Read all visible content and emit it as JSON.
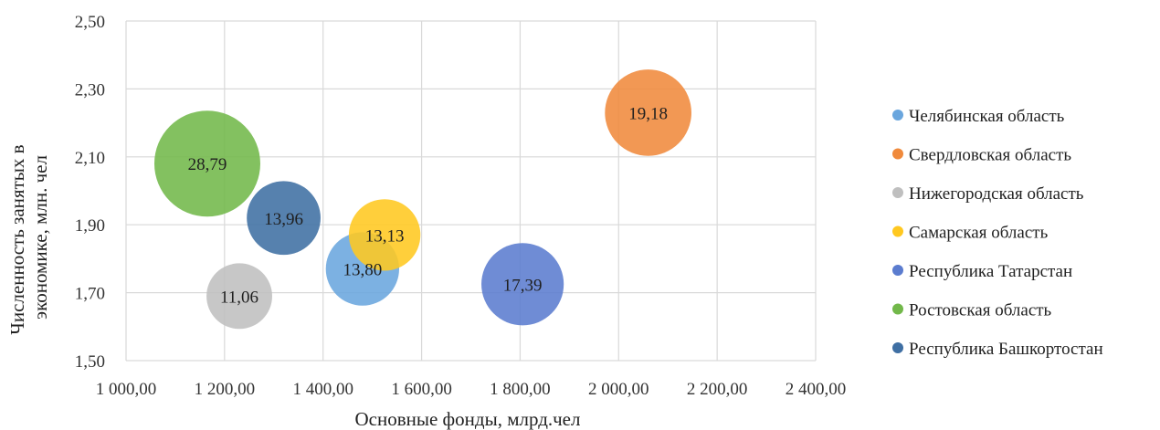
{
  "chart_data": {
    "type": "scatter",
    "variant": "bubble",
    "xlabel": "Основные фонды, млрд.чел",
    "ylabel": "Численность занятых в экономике, млн. чел",
    "xlim": [
      1000,
      2400
    ],
    "ylim": [
      1.5,
      2.5
    ],
    "x_ticks": [
      "1 000,00",
      "1 200,00",
      "1 400,00",
      "1 600,00",
      "1 800,00",
      "2 000,00",
      "2 200,00",
      "2 400,00"
    ],
    "y_ticks": [
      "1,50",
      "1,70",
      "1,90",
      "2,10",
      "2,30",
      "2,50"
    ],
    "grid": true,
    "legend_position": "right",
    "series": [
      {
        "name": "Челябинская область",
        "x": 1480,
        "y": 1.77,
        "size": 13.8,
        "label": "13,80",
        "color": "#6aa6de"
      },
      {
        "name": "Свердловская область",
        "x": 2060,
        "y": 2.23,
        "size": 19.18,
        "label": "19,18",
        "color": "#f08a3c"
      },
      {
        "name": "Нижегородская область",
        "x": 1230,
        "y": 1.69,
        "size": 11.06,
        "label": "11,06",
        "color": "#bfbfbf"
      },
      {
        "name": "Самарская область",
        "x": 1525,
        "y": 1.87,
        "size": 13.13,
        "label": "13,13",
        "color": "#ffc820"
      },
      {
        "name": "Республика Татарстан",
        "x": 1805,
        "y": 1.725,
        "size": 17.39,
        "label": "17,39",
        "color": "#5b7ccf"
      },
      {
        "name": "Ростовская область",
        "x": 1165,
        "y": 2.08,
        "size": 28.79,
        "label": "28,79",
        "color": "#72b84a"
      },
      {
        "name": "Республика Башкортостан",
        "x": 1320,
        "y": 1.92,
        "size": 13.96,
        "label": "13,96",
        "color": "#3f6fa3"
      }
    ]
  }
}
